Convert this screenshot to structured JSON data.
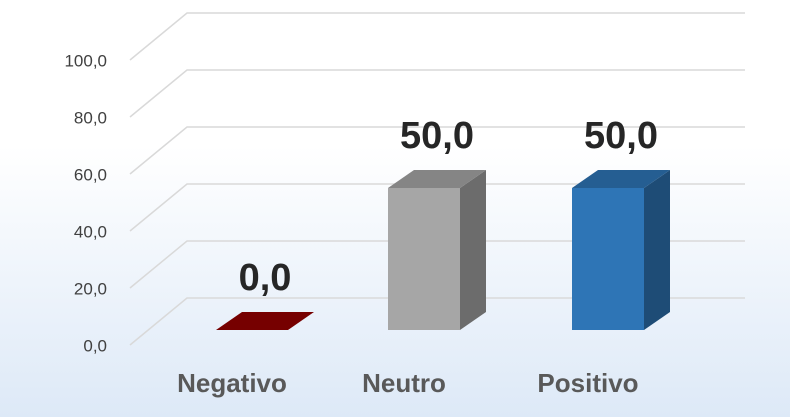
{
  "chart_data": {
    "type": "bar3d",
    "categories": [
      "Negativo",
      "Neutro",
      "Positivo"
    ],
    "values": [
      0,
      50,
      50
    ],
    "value_labels": [
      "0,0",
      "50,0",
      "50,0"
    ],
    "colors": [
      "#8b0000",
      "#a6a6a6",
      "#2e75b6"
    ],
    "ylim": [
      0,
      100
    ],
    "yticks": [
      {
        "value": 0,
        "label": "0,0"
      },
      {
        "value": 20,
        "label": "20,0"
      },
      {
        "value": 40,
        "label": "40,0"
      },
      {
        "value": 60,
        "label": "60,0"
      },
      {
        "value": 80,
        "label": "80,0"
      },
      {
        "value": 100,
        "label": "100,0"
      }
    ],
    "grid": true
  }
}
